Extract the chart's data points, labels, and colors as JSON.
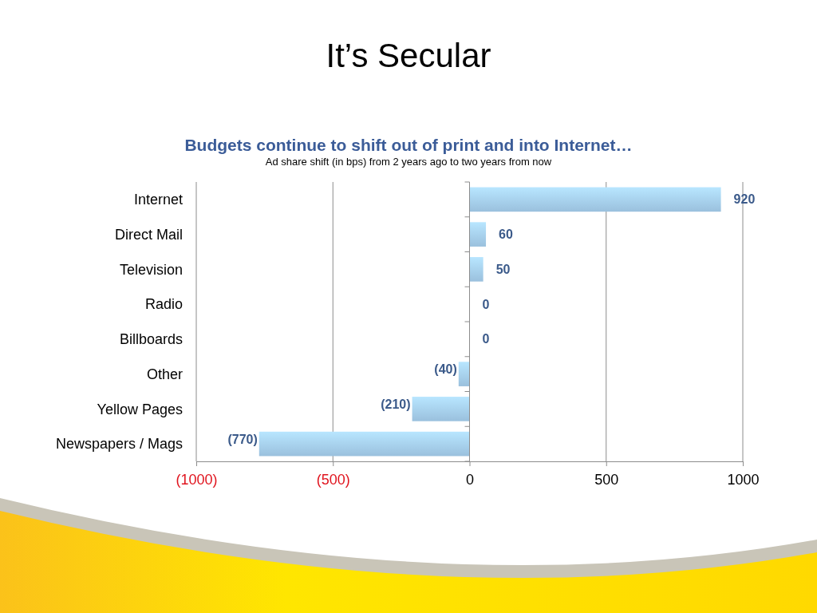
{
  "chart_data": {
    "type": "bar",
    "orientation": "horizontal",
    "title": "It’s Secular",
    "subtitle": "Budgets continue to shift out of print and into Internet…",
    "annotations": [
      "Ad share shift (in bps) from 2 years ago to two years from now"
    ],
    "categories": [
      "Internet",
      "Direct Mail",
      "Television",
      "Radio",
      "Billboards",
      "Other",
      "Yellow Pages",
      "Newspapers / Mags"
    ],
    "values": [
      920,
      60,
      50,
      0,
      0,
      -40,
      -210,
      -770
    ],
    "value_labels": [
      "920",
      "60",
      "50",
      "0",
      "0",
      "(40)",
      "(210)",
      "(770)"
    ],
    "color": "#a8d2f2",
    "xlim": [
      -1000,
      1000
    ],
    "xticks": [
      {
        "value": -1000,
        "label": "(1000)"
      },
      {
        "value": -500,
        "label": "(500)"
      },
      0,
      500,
      1000
    ],
    "grid": "x"
  }
}
